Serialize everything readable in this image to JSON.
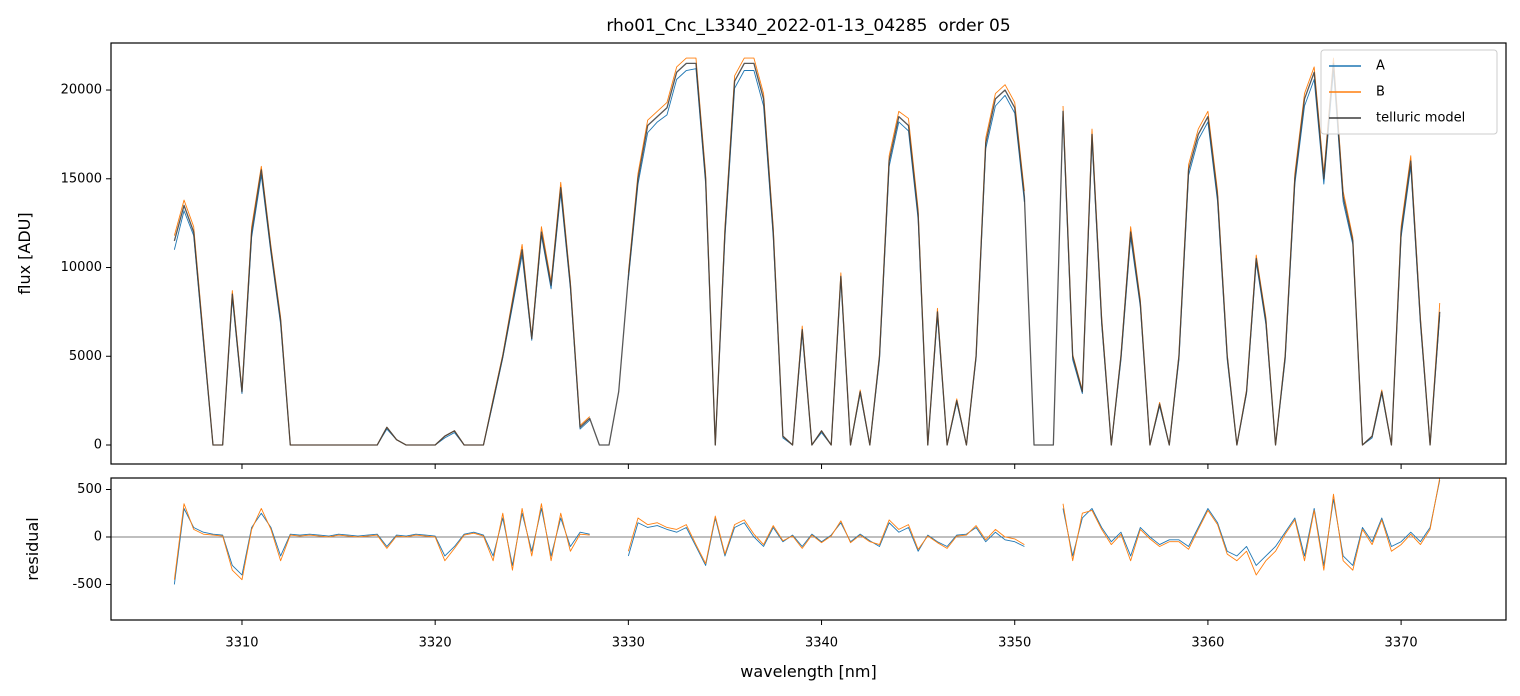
{
  "chart_data": [
    {
      "type": "line",
      "title": "rho01_Cnc_L3340_2022-01-13_04285  order 05",
      "ylabel": "flux [ADU]",
      "x": [
        3306.5,
        3307,
        3307.5,
        3308,
        3308.5,
        3309,
        3309.5,
        3310,
        3310.5,
        3311,
        3311.5,
        3312,
        3312.5,
        3313,
        3313.5,
        3314,
        3314.5,
        3315,
        3315.5,
        3316,
        3316.5,
        3317,
        3317.5,
        3318,
        3318.5,
        3319,
        3319.5,
        3320,
        3320.5,
        3321,
        3321.5,
        3322,
        3322.5,
        3323,
        3323.5,
        3324,
        3324.5,
        3325,
        3325.5,
        3326,
        3326.5,
        3327,
        3327.5,
        3328,
        3328.5,
        3329,
        3329.5,
        3330,
        3330.5,
        3331,
        3331.5,
        3332,
        3332.5,
        3333,
        3333.5,
        3334,
        3334.5,
        3335,
        3335.5,
        3336,
        3336.5,
        3337,
        3337.5,
        3338,
        3338.5,
        3339,
        3339.5,
        3340,
        3340.5,
        3341,
        3341.5,
        3342,
        3342.5,
        3343,
        3343.5,
        3344,
        3344.5,
        3345,
        3345.5,
        3346,
        3346.5,
        3347,
        3347.5,
        3348,
        3348.5,
        3349,
        3349.5,
        3350,
        3350.5,
        3351,
        3351.5,
        3352,
        3352.5,
        3353,
        3353.5,
        3354,
        3354.5,
        3355,
        3355.5,
        3356,
        3356.5,
        3357,
        3357.5,
        3358,
        3358.5,
        3359,
        3359.5,
        3360,
        3360.5,
        3361,
        3361.5,
        3362,
        3362.5,
        3363,
        3363.5,
        3364,
        3364.5,
        3365,
        3365.5,
        3366,
        3366.5,
        3367,
        3367.5,
        3368,
        3368.5,
        3369,
        3369.5,
        3370,
        3370.5,
        3371,
        3371.5,
        3372
      ],
      "series": [
        {
          "name": "A",
          "color": "#1f77b4",
          "values": [
            11000,
            13200,
            11800,
            5800,
            0,
            0,
            8300,
            2900,
            11700,
            15200,
            10800,
            6800,
            0,
            0,
            0,
            0,
            0,
            0,
            0,
            0,
            0,
            0,
            900,
            300,
            0,
            0,
            0,
            0,
            400,
            700,
            0,
            0,
            0,
            2400,
            4900,
            7800,
            10700,
            5900,
            11800,
            8800,
            14200,
            8800,
            900,
            1400,
            null,
            null,
            null,
            9300,
            14700,
            17600,
            18200,
            18600,
            20600,
            21100,
            21200,
            14700,
            0,
            11700,
            20100,
            21100,
            21100,
            19100,
            11700,
            400,
            0,
            6300,
            0,
            700,
            0,
            9300,
            0,
            2900,
            0,
            4800,
            15700,
            18200,
            17700,
            12700,
            0,
            7300,
            0,
            2400,
            0,
            4900,
            16700,
            19100,
            19700,
            18700,
            13700,
            null,
            null,
            null,
            18500,
            4800,
            2900,
            17200,
            6800,
            0,
            4800,
            11700,
            7800,
            0,
            2200,
            0,
            4800,
            15200,
            17200,
            18200,
            13700,
            4800,
            0,
            2900,
            10300,
            6800,
            0,
            4800,
            14700,
            19100,
            20600,
            14700,
            21100,
            13700,
            11300,
            0,
            400,
            2900,
            0,
            11700,
            15700,
            6800,
            0,
            7300
          ]
        },
        {
          "name": "B",
          "color": "#ff7f0e",
          "values": [
            11800,
            13800,
            12300,
            6200,
            0,
            0,
            8700,
            3100,
            12300,
            15700,
            11200,
            7200,
            0,
            0,
            0,
            0,
            0,
            0,
            0,
            0,
            0,
            0,
            1000,
            300,
            0,
            0,
            0,
            0,
            500,
            800,
            0,
            0,
            0,
            2600,
            5100,
            8200,
            11300,
            6100,
            12300,
            9200,
            14800,
            9200,
            1100,
            1600,
            null,
            null,
            null,
            9700,
            15300,
            18300,
            18800,
            19300,
            21300,
            21800,
            21800,
            15300,
            0,
            12300,
            20800,
            21800,
            21800,
            19800,
            12300,
            500,
            0,
            6700,
            0,
            800,
            0,
            9700,
            0,
            3100,
            0,
            5100,
            16300,
            18800,
            18400,
            13300,
            0,
            7700,
            0,
            2600,
            0,
            5100,
            17300,
            19800,
            20300,
            19300,
            14300,
            null,
            null,
            null,
            19100,
            5100,
            3100,
            17800,
            7200,
            0,
            5100,
            12300,
            8200,
            0,
            2400,
            0,
            5100,
            15800,
            17800,
            18800,
            14300,
            5100,
            0,
            3100,
            10700,
            7200,
            0,
            5100,
            15300,
            19800,
            21300,
            15300,
            21800,
            14300,
            11700,
            0,
            500,
            3100,
            0,
            12300,
            16300,
            7200,
            0,
            8000
          ]
        },
        {
          "name": "telluric model",
          "color": "#3b3b3b",
          "values": [
            11500,
            13500,
            12000,
            6000,
            0,
            0,
            8500,
            3000,
            12000,
            15500,
            11000,
            7000,
            0,
            0,
            0,
            0,
            0,
            0,
            0,
            0,
            0,
            0,
            1000,
            300,
            0,
            0,
            0,
            0,
            500,
            800,
            0,
            0,
            0,
            2500,
            5000,
            8000,
            11000,
            6000,
            12000,
            9000,
            14500,
            9000,
            1000,
            1500,
            0,
            0,
            3000,
            9500,
            15000,
            18000,
            18500,
            19000,
            21000,
            21500,
            21500,
            15000,
            0,
            12000,
            20500,
            21500,
            21500,
            19500,
            12000,
            500,
            0,
            6500,
            0,
            800,
            0,
            9500,
            0,
            3000,
            0,
            5000,
            16000,
            18500,
            18000,
            13000,
            0,
            7500,
            0,
            2500,
            0,
            5000,
            17000,
            19500,
            20000,
            19000,
            14000,
            0,
            0,
            0,
            18800,
            5000,
            3000,
            17500,
            7000,
            0,
            5000,
            12000,
            8000,
            0,
            2300,
            0,
            5000,
            15500,
            17500,
            18500,
            14000,
            5000,
            0,
            3000,
            10500,
            7000,
            0,
            5000,
            15000,
            19500,
            21000,
            15000,
            21500,
            14000,
            11500,
            0,
            500,
            3000,
            0,
            12000,
            16000,
            7000,
            0,
            7500
          ]
        }
      ],
      "xlim": [
        3303.22,
        3375.43
      ],
      "ylim": [
        -1070,
        22650
      ],
      "yticks": [
        0,
        5000,
        10000,
        15000,
        20000
      ],
      "legend": "upper right"
    },
    {
      "type": "line",
      "xlabel": "wavelength [nm]",
      "ylabel": "residual",
      "x": [
        3306.5,
        3307,
        3307.5,
        3308,
        3308.5,
        3309,
        3309.5,
        3310,
        3310.5,
        3311,
        3311.5,
        3312,
        3312.5,
        3313,
        3313.5,
        3314,
        3314.5,
        3315,
        3315.5,
        3316,
        3316.5,
        3317,
        3317.5,
        3318,
        3318.5,
        3319,
        3319.5,
        3320,
        3320.5,
        3321,
        3321.5,
        3322,
        3322.5,
        3323,
        3323.5,
        3324,
        3324.5,
        3325,
        3325.5,
        3326,
        3326.5,
        3327,
        3327.5,
        3328,
        3328.5,
        3329,
        3329.5,
        3330,
        3330.5,
        3331,
        3331.5,
        3332,
        3332.5,
        3333,
        3333.5,
        3334,
        3334.5,
        3335,
        3335.5,
        3336,
        3336.5,
        3337,
        3337.5,
        3338,
        3338.5,
        3339,
        3339.5,
        3340,
        3340.5,
        3341,
        3341.5,
        3342,
        3342.5,
        3343,
        3343.5,
        3344,
        3344.5,
        3345,
        3345.5,
        3346,
        3346.5,
        3347,
        3347.5,
        3348,
        3348.5,
        3349,
        3349.5,
        3350,
        3350.5,
        3351,
        3351.5,
        3352,
        3352.5,
        3353,
        3353.5,
        3354,
        3354.5,
        3355,
        3355.5,
        3356,
        3356.5,
        3357,
        3357.5,
        3358,
        3358.5,
        3359,
        3359.5,
        3360,
        3360.5,
        3361,
        3361.5,
        3362,
        3362.5,
        3363,
        3363.5,
        3364,
        3364.5,
        3365,
        3365.5,
        3366,
        3366.5,
        3367,
        3367.5,
        3368,
        3368.5,
        3369,
        3369.5,
        3370,
        3370.5,
        3371,
        3371.5,
        3372
      ],
      "series": [
        {
          "color": "#1f77b4",
          "values": [
            -500,
            300,
            100,
            50,
            30,
            20,
            -300,
            -400,
            100,
            250,
            100,
            -200,
            30,
            20,
            30,
            20,
            10,
            30,
            20,
            10,
            20,
            30,
            -100,
            20,
            10,
            30,
            20,
            10,
            -200,
            -100,
            30,
            50,
            20,
            -200,
            200,
            -300,
            250,
            -150,
            300,
            -200,
            200,
            -100,
            50,
            30,
            null,
            null,
            null,
            -200,
            150,
            100,
            120,
            80,
            50,
            100,
            -100,
            -300,
            200,
            -200,
            100,
            150,
            0,
            -100,
            100,
            -50,
            20,
            -100,
            30,
            -50,
            20,
            150,
            -50,
            30,
            -40,
            -100,
            150,
            50,
            100,
            -150,
            20,
            -50,
            -100,
            20,
            30,
            100,
            -50,
            50,
            -30,
            -50,
            -100,
            null,
            null,
            null,
            300,
            -200,
            200,
            300,
            100,
            -50,
            50,
            -200,
            100,
            0,
            -80,
            -30,
            -30,
            -100,
            100,
            300,
            150,
            -150,
            -200,
            -100,
            -300,
            -200,
            -100,
            50,
            200,
            -200,
            300,
            -300,
            400,
            -200,
            -300,
            100,
            -50,
            200,
            -100,
            -50,
            50,
            -50,
            100,
            600
          ]
        },
        {
          "color": "#ff7f0e",
          "values": [
            -450,
            350,
            80,
            30,
            20,
            10,
            -350,
            -450,
            80,
            300,
            80,
            -250,
            20,
            10,
            20,
            10,
            0,
            20,
            10,
            0,
            10,
            20,
            -120,
            10,
            0,
            20,
            10,
            0,
            -250,
            -120,
            20,
            40,
            10,
            -250,
            250,
            -350,
            300,
            -200,
            350,
            -250,
            250,
            -150,
            30,
            20,
            null,
            null,
            null,
            -150,
            200,
            130,
            150,
            100,
            80,
            130,
            -80,
            -280,
            220,
            -180,
            130,
            180,
            30,
            -80,
            120,
            -40,
            10,
            -120,
            20,
            -60,
            10,
            170,
            -60,
            20,
            -50,
            -80,
            180,
            80,
            130,
            -130,
            10,
            -60,
            -120,
            10,
            20,
            120,
            -30,
            80,
            0,
            -20,
            -80,
            null,
            null,
            null,
            350,
            -250,
            250,
            280,
            80,
            -80,
            30,
            -250,
            80,
            -20,
            -100,
            -50,
            -50,
            -130,
            80,
            280,
            130,
            -180,
            -250,
            -150,
            -400,
            -250,
            -150,
            30,
            180,
            -250,
            280,
            -350,
            450,
            -250,
            -350,
            80,
            -80,
            180,
            -150,
            -80,
            30,
            -80,
            80,
            620
          ]
        }
      ],
      "xlim": [
        3303.22,
        3375.43
      ],
      "ylim": [
        -874,
        621
      ],
      "xticks": [
        3310,
        3320,
        3330,
        3340,
        3350,
        3360,
        3370
      ],
      "yticks": [
        -500,
        0,
        500
      ],
      "hline": 0
    }
  ]
}
